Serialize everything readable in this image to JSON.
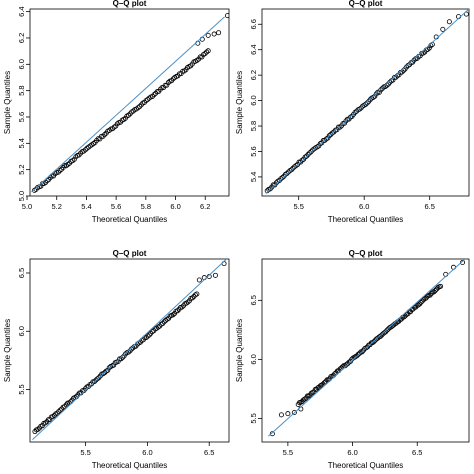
{
  "chart_data": [
    {
      "type": "scatter",
      "title": "Q–Q plot",
      "xlabel": "Theoretical Quantiles",
      "ylabel": "Sample Quantiles",
      "xlim": [
        5.02,
        6.36
      ],
      "ylim": [
        5.0,
        6.42
      ],
      "xticks": [
        "5.0",
        "5.2",
        "5.4",
        "5.6",
        "5.8",
        "6.0",
        "6.2"
      ],
      "yticks": [
        "5.0",
        "5.2",
        "5.4",
        "5.6",
        "5.8",
        "6.0",
        "6.2",
        "6.4"
      ],
      "reference_line": {
        "x": [
          5.03,
          6.33
        ],
        "y": [
          5.03,
          6.36
        ],
        "color": "#4a90c8"
      },
      "points": {
        "x_range": [
          5.05,
          6.22
        ],
        "y_range": [
          5.04,
          6.1
        ],
        "count": 110,
        "outliers_x": [
          6.15,
          6.18,
          6.22,
          6.26,
          6.29,
          6.35
        ],
        "outliers_y": [
          6.16,
          6.19,
          6.22,
          6.23,
          6.24,
          6.37
        ]
      },
      "marker_color": "#000000"
    },
    {
      "type": "scatter",
      "title": "Q–Q plot",
      "xlabel": "Theoretical Quantiles",
      "ylabel": "Sample Quantiles",
      "xlim": [
        5.22,
        6.8
      ],
      "ylim": [
        5.25,
        6.72
      ],
      "xticks": [
        "5.5",
        "6.0",
        "6.5"
      ],
      "yticks": [
        "5.4",
        "5.6",
        "5.8",
        "6.0",
        "6.2",
        "6.4",
        "6.6"
      ],
      "reference_line": {
        "x": [
          5.25,
          6.8
        ],
        "y": [
          5.27,
          6.72
        ],
        "color": "#4a90c8"
      },
      "points": {
        "x_range": [
          5.26,
          6.52
        ],
        "y_range": [
          5.29,
          6.44
        ],
        "count": 110,
        "outliers_x": [
          6.55,
          6.6,
          6.65,
          6.72,
          6.78
        ],
        "outliers_y": [
          6.5,
          6.56,
          6.62,
          6.66,
          6.68
        ]
      },
      "marker_color": "#000000"
    },
    {
      "type": "scatter",
      "title": "Q–Q plot",
      "xlabel": "Theoretical Quantiles",
      "ylabel": "Sample Quantiles",
      "xlim": [
        5.05,
        6.66
      ],
      "ylim": [
        5.05,
        6.62
      ],
      "xticks": [
        "5.5",
        "6.0",
        "6.5"
      ],
      "yticks": [
        "5.5",
        "6.0",
        "6.5"
      ],
      "reference_line": {
        "x": [
          5.07,
          6.64
        ],
        "y": [
          5.07,
          6.62
        ],
        "color": "#4a90c8"
      },
      "points": {
        "x_range": [
          5.09,
          6.4
        ],
        "y_range": [
          5.14,
          6.32
        ],
        "count": 110,
        "outliers_x": [
          6.42,
          6.46,
          6.5,
          6.55,
          6.62
        ],
        "outliers_y": [
          6.44,
          6.46,
          6.47,
          6.48,
          6.58
        ]
      },
      "marker_color": "#000000"
    },
    {
      "type": "scatter",
      "title": "Q–Q plot",
      "xlabel": "Theoretical Quantiles",
      "ylabel": "Sample Quantiles",
      "xlim": [
        5.3,
        6.9
      ],
      "ylim": [
        5.3,
        6.85
      ],
      "xticks": [
        "5.5",
        "6.0",
        "6.5"
      ],
      "yticks": [
        "5.5",
        "6.0",
        "6.5"
      ],
      "reference_line": {
        "x": [
          5.35,
          6.9
        ],
        "y": [
          5.35,
          6.88
        ],
        "color": "#4a90c8"
      },
      "points": {
        "x_range": [
          5.58,
          6.68
        ],
        "y_range": [
          5.62,
          6.62
        ],
        "count": 110,
        "outliers_x": [
          5.38,
          5.45,
          5.5,
          5.55,
          5.6,
          6.72,
          6.78,
          6.85
        ],
        "outliers_y": [
          5.37,
          5.53,
          5.54,
          5.55,
          5.58,
          6.72,
          6.78,
          6.82
        ]
      },
      "marker_color": "#000000"
    }
  ]
}
